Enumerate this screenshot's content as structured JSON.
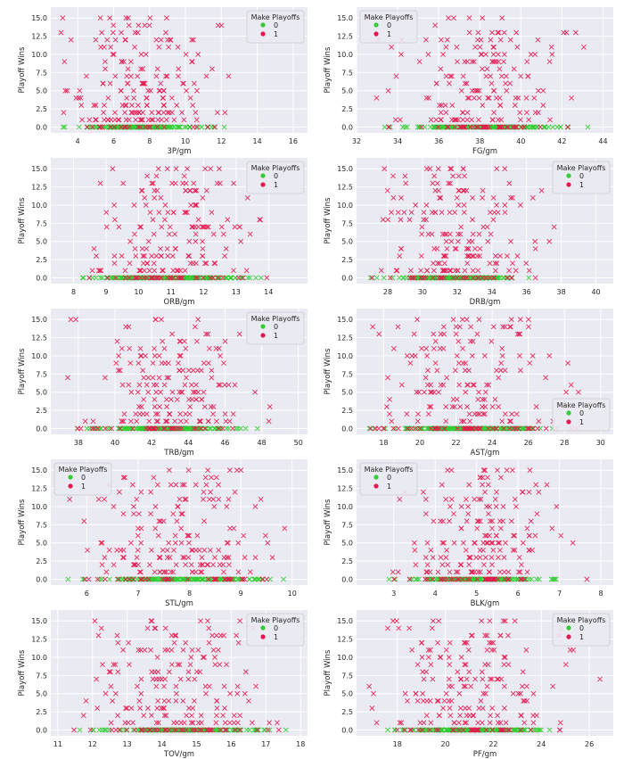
{
  "colors": {
    "plot_bg": "#eaeaf2",
    "grid": "#ffffff",
    "class_0": "#32cd32",
    "class_1": "#e8174f",
    "text": "#262626"
  },
  "legend_title": "Make Playoffs",
  "ylabel": "Playoff Wins",
  "chart_data": [
    {
      "type": "scatter",
      "xlabel": "3P/gm",
      "xlim": [
        2.5,
        16.8
      ],
      "xticks": [
        4,
        6,
        8,
        10,
        12,
        14,
        16
      ],
      "ylim": [
        -0.8,
        16.5
      ],
      "yticks": [
        0.0,
        2.5,
        5.0,
        7.5,
        10.0,
        12.5,
        15.0
      ],
      "legend": "top-right",
      "series": [
        {
          "name": "0",
          "marker": "x"
        },
        {
          "name": "1",
          "marker": "x"
        }
      ],
      "x_center": 7.5,
      "x_spread": 1.8,
      "x_range": [
        2.8,
        16.2
      ],
      "seed": 11
    },
    {
      "type": "scatter",
      "xlabel": "FG/gm",
      "xlim": [
        32,
        44.5
      ],
      "xticks": [
        32,
        34,
        36,
        38,
        40,
        42,
        44
      ],
      "ylim": [
        -0.8,
        16.5
      ],
      "yticks": [
        0.0,
        2.5,
        5.0,
        7.5,
        10.0,
        12.5,
        15.0
      ],
      "legend": "top-left",
      "series": [
        {
          "name": "0",
          "marker": "x"
        },
        {
          "name": "1",
          "marker": "x"
        }
      ],
      "x_center": 38.0,
      "x_spread": 1.8,
      "x_range": [
        32.5,
        44.0
      ],
      "seed": 23
    },
    {
      "type": "scatter",
      "xlabel": "ORB/gm",
      "xlim": [
        7.3,
        15.2
      ],
      "xticks": [
        8,
        9,
        10,
        11,
        12,
        13,
        14
      ],
      "ylim": [
        -0.8,
        16.5
      ],
      "yticks": [
        0.0,
        2.5,
        5.0,
        7.5,
        10.0,
        12.5,
        15.0
      ],
      "legend": "top-right",
      "series": [
        {
          "name": "0",
          "marker": "x"
        },
        {
          "name": "1",
          "marker": "x"
        }
      ],
      "x_center": 11.0,
      "x_spread": 1.2,
      "x_range": [
        7.6,
        14.8
      ],
      "seed": 37
    },
    {
      "type": "scatter",
      "xlabel": "DRB/gm",
      "xlim": [
        26.2,
        41
      ],
      "xticks": [
        28,
        30,
        32,
        34,
        36,
        38,
        40
      ],
      "ylim": [
        -0.8,
        16.5
      ],
      "yticks": [
        0.0,
        2.5,
        5.0,
        7.5,
        10.0,
        12.5,
        15.0
      ],
      "legend": "top-right",
      "series": [
        {
          "name": "0",
          "marker": "x"
        },
        {
          "name": "1",
          "marker": "x"
        }
      ],
      "x_center": 31.8,
      "x_spread": 2.0,
      "x_range": [
        27.0,
        40.2
      ],
      "seed": 41
    },
    {
      "type": "scatter",
      "xlabel": "TRB/gm",
      "xlim": [
        36.5,
        50.5
      ],
      "xticks": [
        38,
        40,
        42,
        44,
        46,
        48,
        50
      ],
      "ylim": [
        -0.8,
        16.5
      ],
      "yticks": [
        0.0,
        2.5,
        5.0,
        7.5,
        10.0,
        12.5,
        15.0
      ],
      "legend": "top-right",
      "series": [
        {
          "name": "0",
          "marker": "x"
        },
        {
          "name": "1",
          "marker": "x"
        }
      ],
      "x_center": 43.0,
      "x_spread": 2.0,
      "x_range": [
        37.0,
        49.8
      ],
      "seed": 53
    },
    {
      "type": "scatter",
      "xlabel": "AST/gm",
      "xlim": [
        16.5,
        30.7
      ],
      "xticks": [
        18,
        20,
        22,
        24,
        26,
        28,
        30
      ],
      "ylim": [
        -0.8,
        16.5
      ],
      "yticks": [
        0.0,
        2.5,
        5.0,
        7.5,
        10.0,
        12.5,
        15.0
      ],
      "legend": "bottom-right",
      "series": [
        {
          "name": "0",
          "marker": "x"
        },
        {
          "name": "1",
          "marker": "x"
        }
      ],
      "x_center": 22.5,
      "x_spread": 2.0,
      "x_range": [
        17.0,
        30.3
      ],
      "seed": 67
    },
    {
      "type": "scatter",
      "xlabel": "STL/gm",
      "xlim": [
        5.3,
        10.3
      ],
      "xticks": [
        6,
        7,
        8,
        9,
        10
      ],
      "ylim": [
        -0.8,
        16.5
      ],
      "yticks": [
        0.0,
        2.5,
        5.0,
        7.5,
        10.0,
        12.5,
        15.0
      ],
      "legend": "top-left",
      "series": [
        {
          "name": "0",
          "marker": "x"
        },
        {
          "name": "1",
          "marker": "x"
        }
      ],
      "x_center": 7.8,
      "x_spread": 0.8,
      "x_range": [
        5.5,
        10.0
      ],
      "seed": 79
    },
    {
      "type": "scatter",
      "xlabel": "BLK/gm",
      "xlim": [
        2.1,
        8.3
      ],
      "xticks": [
        3,
        4,
        5,
        6,
        7,
        8
      ],
      "ylim": [
        -0.8,
        16.5
      ],
      "yticks": [
        0.0,
        2.5,
        5.0,
        7.5,
        10.0,
        12.5,
        15.0
      ],
      "legend": "top-left",
      "series": [
        {
          "name": "0",
          "marker": "x"
        },
        {
          "name": "1",
          "marker": "x"
        }
      ],
      "x_center": 5.0,
      "x_spread": 0.8,
      "x_range": [
        2.4,
        8.1
      ],
      "seed": 83
    },
    {
      "type": "scatter",
      "xlabel": "TOV/gm",
      "xlim": [
        10.8,
        18.2
      ],
      "xticks": [
        11,
        12,
        13,
        14,
        15,
        16,
        17,
        18
      ],
      "ylim": [
        -0.8,
        16.5
      ],
      "yticks": [
        0.0,
        2.5,
        5.0,
        7.5,
        10.0,
        12.5,
        15.0
      ],
      "legend": "top-right",
      "series": [
        {
          "name": "0",
          "marker": "x"
        },
        {
          "name": "1",
          "marker": "x"
        }
      ],
      "x_center": 14.4,
      "x_spread": 1.2,
      "x_range": [
        11.2,
        17.7
      ],
      "seed": 97
    },
    {
      "type": "scatter",
      "xlabel": "PF/gm",
      "xlim": [
        16.3,
        27
      ],
      "xticks": [
        18,
        20,
        22,
        24,
        26
      ],
      "ylim": [
        -0.8,
        16.5
      ],
      "yticks": [
        0.0,
        2.5,
        5.0,
        7.5,
        10.0,
        12.5,
        15.0
      ],
      "legend": "top-right",
      "series": [
        {
          "name": "0",
          "marker": "x"
        },
        {
          "name": "1",
          "marker": "x"
        }
      ],
      "x_center": 21.0,
      "x_spread": 1.5,
      "x_range": [
        16.8,
        26.5
      ],
      "seed": 101
    }
  ]
}
